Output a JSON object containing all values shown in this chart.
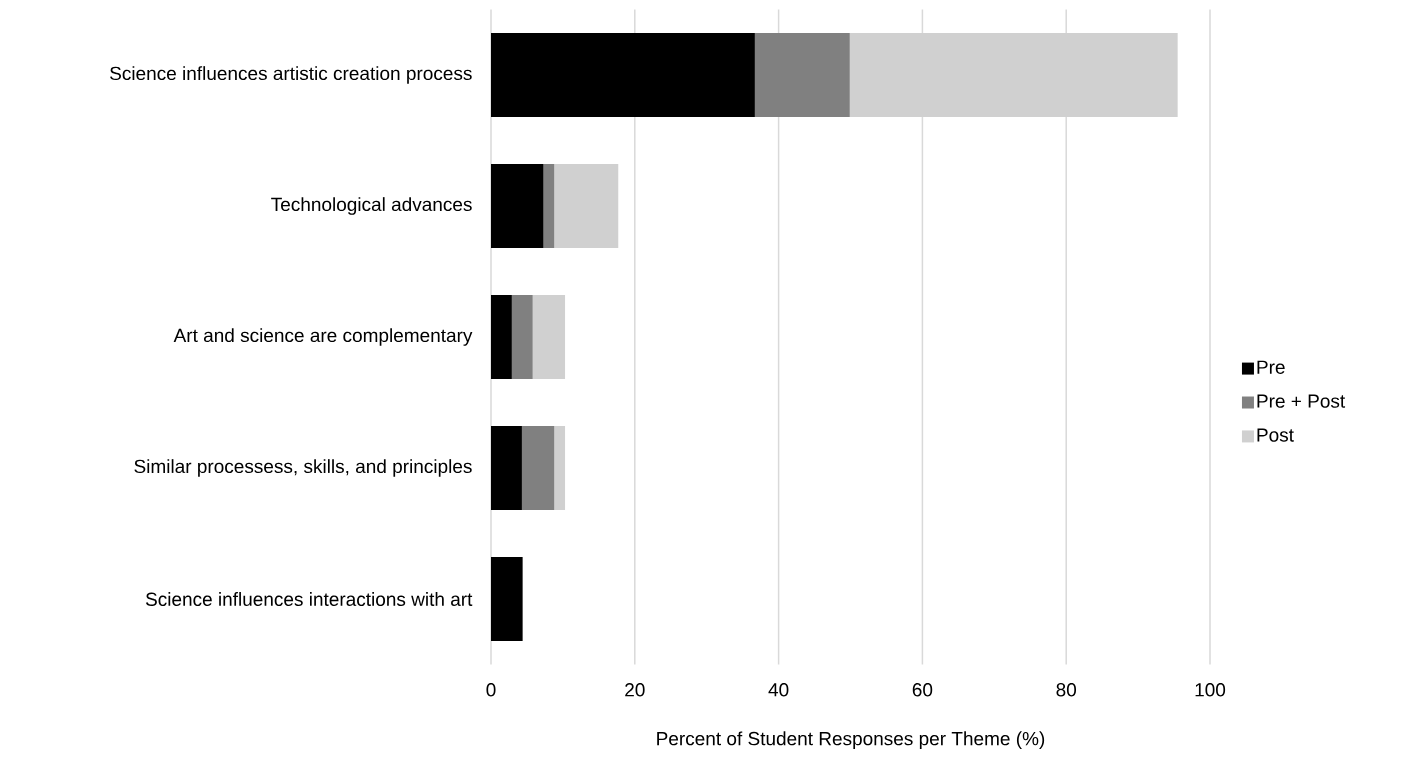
{
  "chart_data": {
    "type": "bar",
    "orientation": "horizontal",
    "stacked": true,
    "categories": [
      "Science influences artistic creation process",
      "Technological advances",
      "Art and science are complementary",
      "Similar processess, skills, and principles",
      "Science influences interactions with art"
    ],
    "series": [
      {
        "name": "Pre",
        "color": "#000000",
        "values": [
          36.7,
          7.3,
          2.9,
          4.3,
          4.4
        ]
      },
      {
        "name": "Pre + Post",
        "color": "#808080",
        "values": [
          13.2,
          1.5,
          2.9,
          4.5,
          null
        ]
      },
      {
        "name": "Post",
        "color": "#d0d0d0",
        "values": [
          45.6,
          8.9,
          4.5,
          1.5,
          null
        ]
      }
    ],
    "xlabel": "Percent of Student Responses per Theme (%)",
    "xlim": [
      0,
      100
    ],
    "xticks": [
      0,
      20,
      40,
      60,
      80,
      100
    ],
    "grid": "x",
    "legend": "right"
  }
}
